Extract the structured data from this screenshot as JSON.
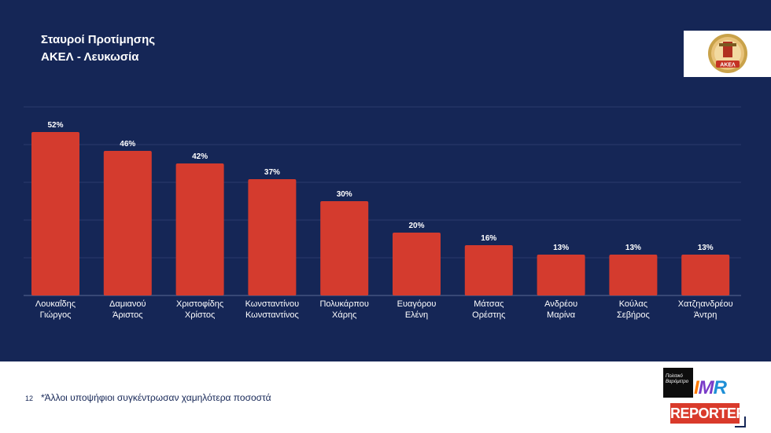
{
  "title": {
    "line1": "Σταυροί Προτίμησης",
    "line2": "ΑΚΕΛ - Λευκωσία"
  },
  "chart_data": {
    "type": "bar",
    "title": "Σταυροί Προτίμησης ΑΚΕΛ - Λευκωσία",
    "categories": [
      [
        "Λουκαΐδης",
        "Γιώργος"
      ],
      [
        "Δαμιανού",
        "Άριστος"
      ],
      [
        "Χριστοφίδης",
        "Χρίστος"
      ],
      [
        "Κωνσταντίνου",
        "Κωνσταντίνος"
      ],
      [
        "Πολυκάρπου",
        "Χάρης"
      ],
      [
        "Ευαγόρου",
        "Ελένη"
      ],
      [
        "Μάτσας",
        "Ορέστης"
      ],
      [
        "Ανδρέου",
        "Μαρίνα"
      ],
      [
        "Κούλας",
        "Σεβήρος"
      ],
      [
        "Χατζηανδρέου",
        "Άντρη"
      ]
    ],
    "values": [
      52,
      46,
      42,
      37,
      30,
      20,
      16,
      13,
      13,
      13
    ],
    "value_labels": [
      "52%",
      "46%",
      "42%",
      "37%",
      "30%",
      "20%",
      "16%",
      "13%",
      "13%",
      "13%"
    ],
    "unit": "%",
    "ylim": [
      0,
      60
    ],
    "grid": true,
    "bar_color": "#d43b2e"
  },
  "logos": {
    "party_logo_text": "ΑΚΕΛ",
    "politiko_text": "Πολιτικό Βαρόμετρο",
    "imr_i": "I",
    "imr_m": "M",
    "imr_r": "R",
    "reporter": "REPORTER"
  },
  "footer": {
    "page_number": "12",
    "note": "*Άλλοι υποψήφιοι συγκέντρωσαν χαμηλότερα ποσοστά"
  }
}
